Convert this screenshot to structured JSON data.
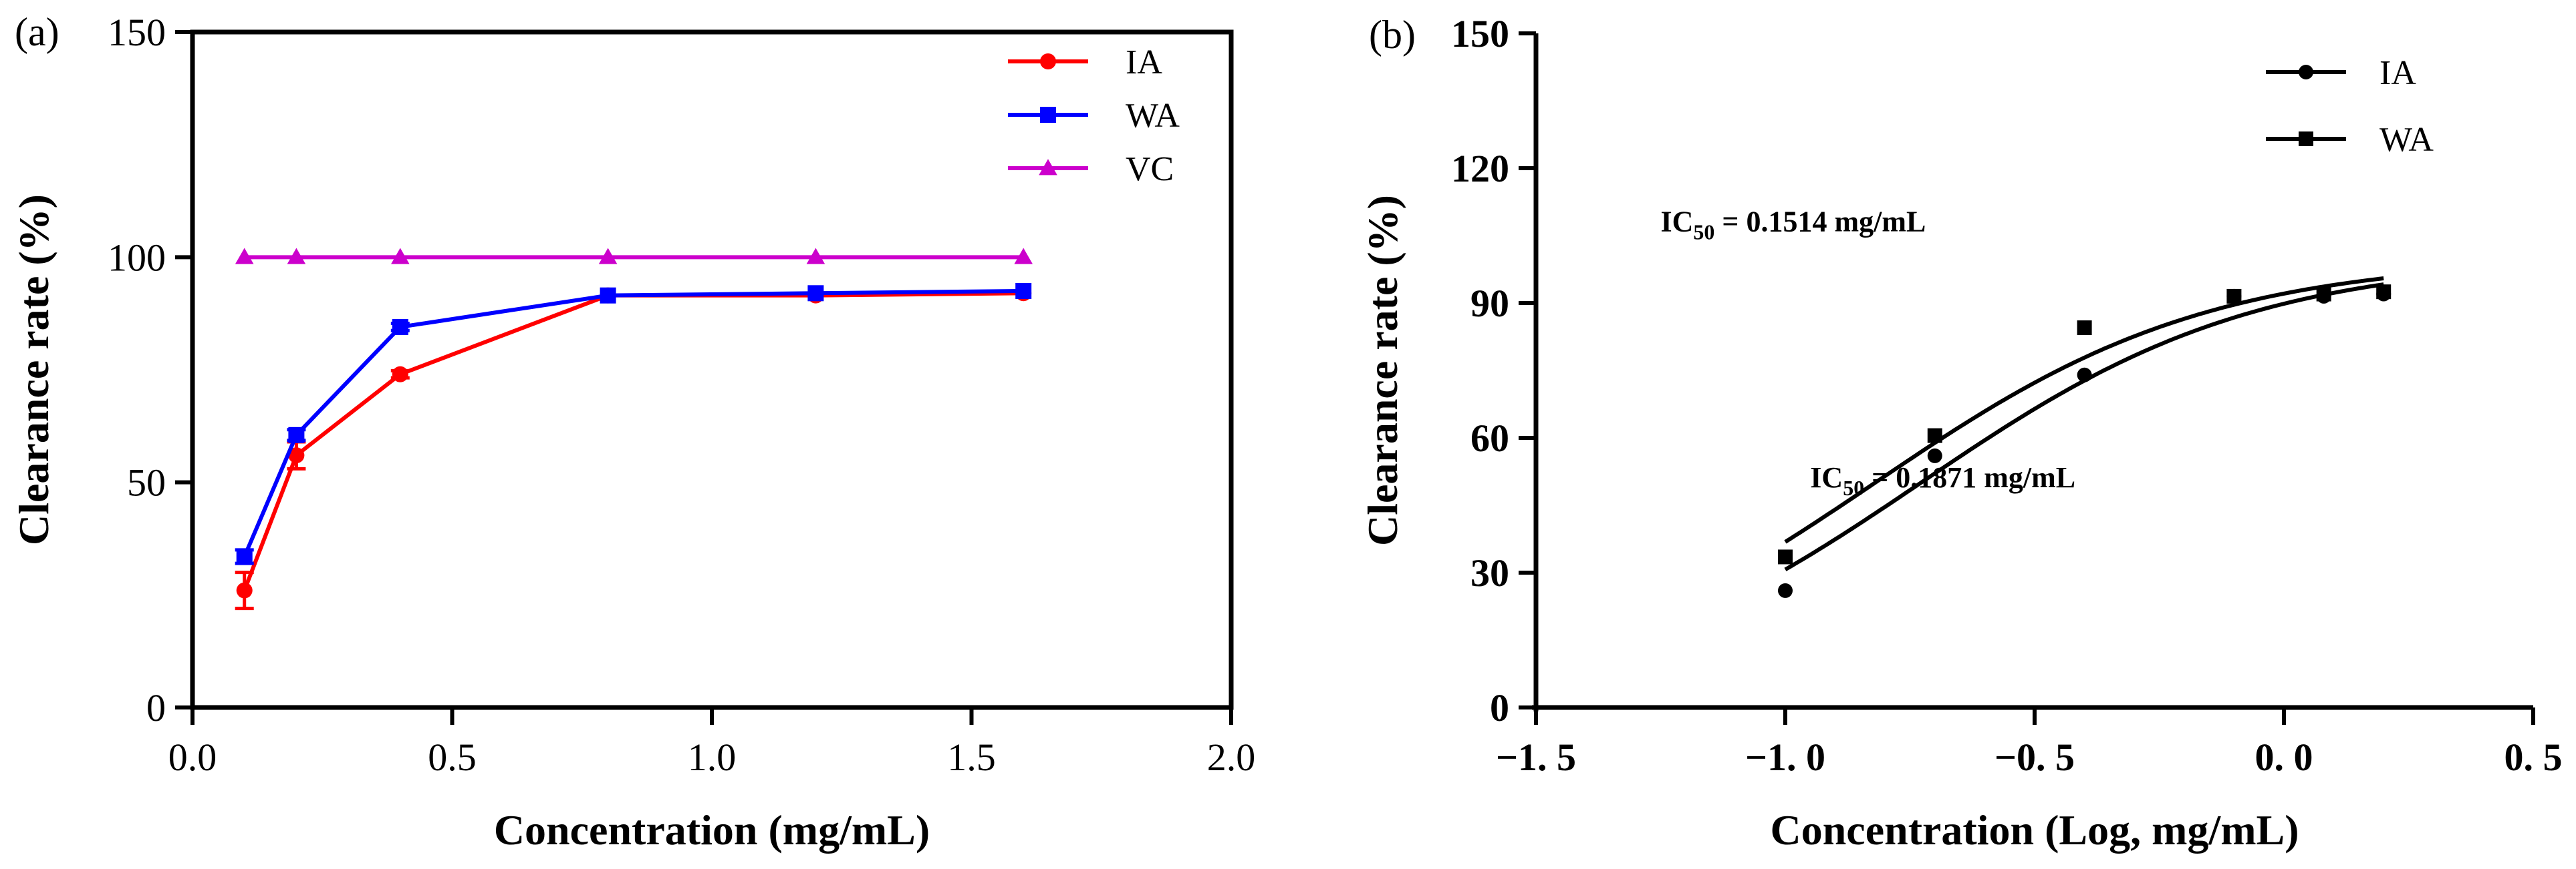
{
  "chart_data": [
    {
      "type": "line",
      "panel_label": "(a)",
      "xlabel": "Concentration (mg/mL)",
      "ylabel": "Clearance rate (%)",
      "xlim": [
        0.0,
        2.0
      ],
      "ylim": [
        0,
        150
      ],
      "xticks": [
        0.0,
        0.5,
        1.0,
        1.5,
        2.0
      ],
      "xtick_labels": [
        "0.0",
        "0.5",
        "1.0",
        "1.5",
        "2.0"
      ],
      "yticks": [
        0,
        50,
        100,
        150
      ],
      "ytick_labels": [
        "0",
        "50",
        "100",
        "150"
      ],
      "legend_position": "top-right",
      "series": [
        {
          "name": "IA",
          "color": "#ff0000",
          "marker": "circle",
          "x": [
            0.1,
            0.2,
            0.4,
            0.8,
            1.2,
            1.6
          ],
          "y": [
            26,
            56,
            74,
            91.5,
            91.5,
            92
          ],
          "err": [
            4,
            3,
            0.8,
            0.5,
            0.5,
            0.5
          ]
        },
        {
          "name": "WA",
          "color": "#0000ff",
          "marker": "square",
          "x": [
            0.1,
            0.2,
            0.4,
            0.8,
            1.2,
            1.6
          ],
          "y": [
            33.5,
            60.5,
            84.5,
            91.5,
            92,
            92.5
          ],
          "err": [
            1.5,
            1.2,
            0.8,
            0.5,
            0.5,
            0.5
          ]
        },
        {
          "name": "VC",
          "color": "#cc00cc",
          "marker": "triangle",
          "x": [
            0.1,
            0.2,
            0.4,
            0.8,
            1.2,
            1.6
          ],
          "y": [
            100,
            100,
            100,
            100,
            100,
            100
          ],
          "err": [
            0,
            0,
            0,
            0,
            0,
            0
          ]
        }
      ]
    },
    {
      "type": "scatter",
      "panel_label": "(b)",
      "xlabel": "Concentration (Log, mg/mL)",
      "ylabel": "Clearance rate (%)",
      "xlim": [
        -1.5,
        0.5
      ],
      "ylim": [
        0,
        150
      ],
      "xticks": [
        -1.5,
        -1.0,
        -0.5,
        0.0,
        0.5
      ],
      "xtick_labels": [
        "−1. 5",
        "−1. 0",
        "−0. 5",
        "0. 0",
        "0. 5"
      ],
      "yticks": [
        0,
        30,
        60,
        90,
        120,
        150
      ],
      "ytick_labels": [
        "0",
        "30",
        "60",
        "90",
        "120",
        "150"
      ],
      "legend_position": "top-right",
      "annotations": [
        {
          "prefix": "IC",
          "sub": "50",
          "text": " = 0.1514 mg/mL",
          "x": -1.25,
          "y": 106
        },
        {
          "prefix": "IC",
          "sub": "50",
          "text": " = 0.1871 mg/mL",
          "x": -0.95,
          "y": 49
        }
      ],
      "series": [
        {
          "name": "IA",
          "color": "#000000",
          "marker": "circle",
          "x": [
            -1.0,
            -0.7,
            -0.4,
            -0.1,
            0.08,
            0.2
          ],
          "y": [
            26,
            56,
            74,
            91.5,
            91.5,
            92
          ],
          "fit": {
            "top": 100,
            "log_ic50": -0.728,
            "hill": 1.3
          }
        },
        {
          "name": "WA",
          "color": "#000000",
          "marker": "square",
          "x": [
            -1.0,
            -0.7,
            -0.4,
            -0.1,
            0.08,
            0.2
          ],
          "y": [
            33.5,
            60.5,
            84.5,
            91.5,
            92,
            92.5
          ],
          "fit": {
            "top": 100,
            "log_ic50": -0.82,
            "hill": 1.3
          }
        }
      ]
    }
  ]
}
